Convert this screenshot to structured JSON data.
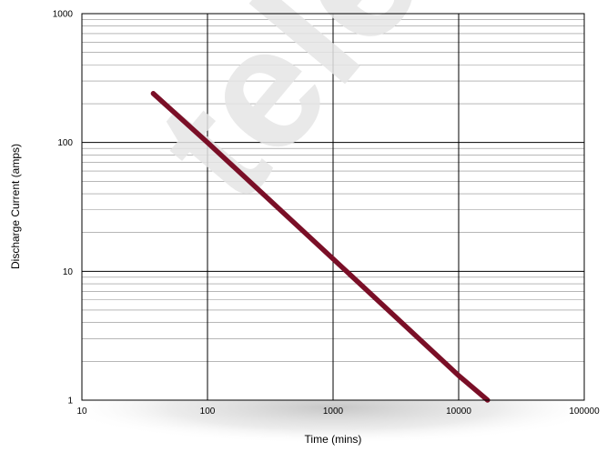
{
  "chart_data": {
    "type": "line",
    "title": "",
    "xlabel": "Time (mins)",
    "ylabel": "Discharge Current (amps)",
    "x_scale": "log",
    "y_scale": "log",
    "xlim": [
      10,
      100000
    ],
    "ylim": [
      1,
      1000
    ],
    "x_ticks": [
      "10",
      "100",
      "1000",
      "10000",
      "100000"
    ],
    "y_ticks": [
      "1",
      "10",
      "100",
      "1000"
    ],
    "grid": true,
    "legend": "none",
    "watermark": "telec",
    "series": [
      {
        "color": "#7a0f27",
        "x": [
          37,
          100,
          1000,
          10000,
          17000
        ],
        "y": [
          240,
          100,
          12.5,
          1.55,
          1.0
        ]
      }
    ]
  }
}
